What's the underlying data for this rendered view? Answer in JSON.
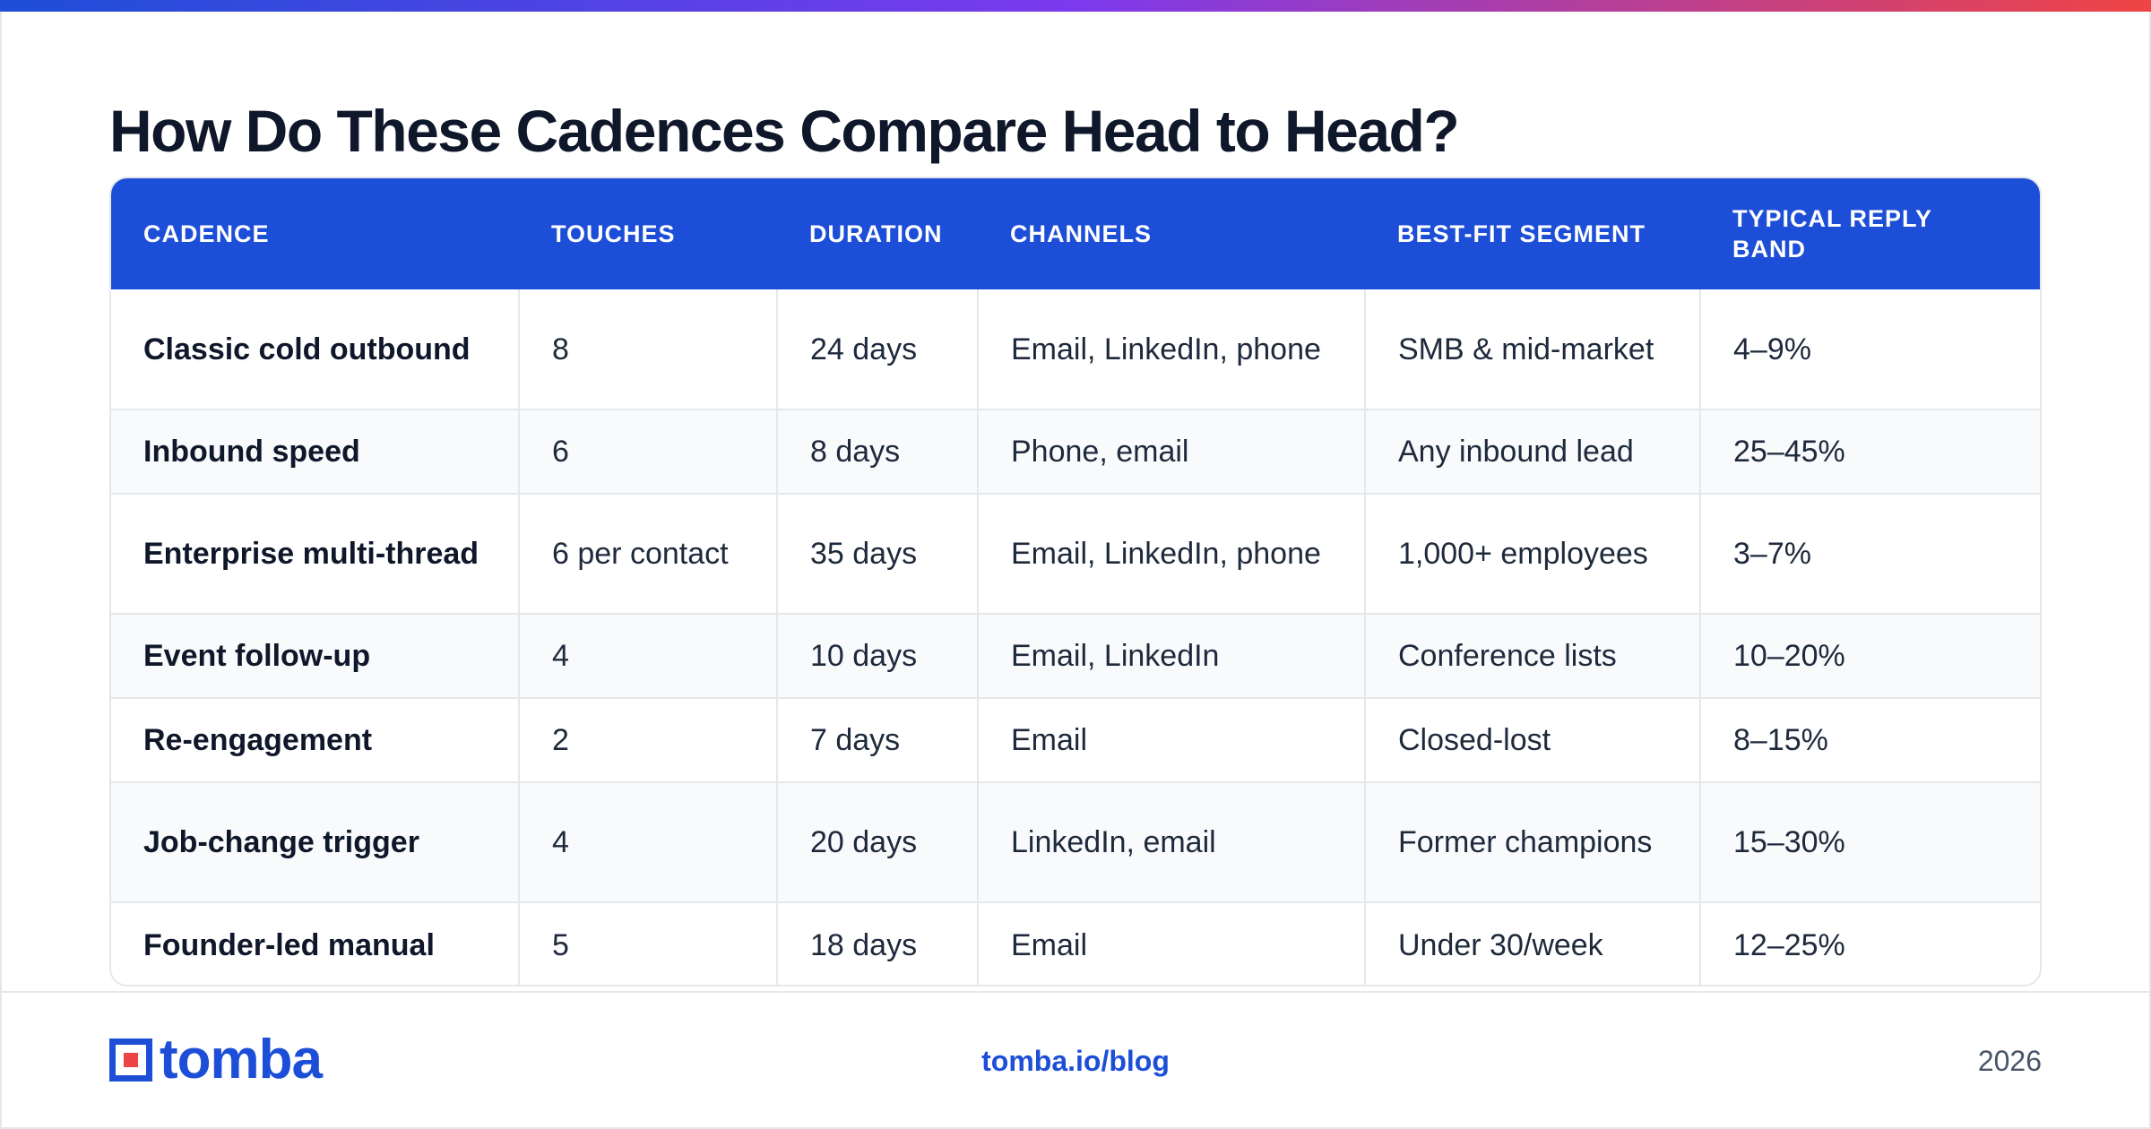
{
  "title": "How Do These Cadences Compare Head to Head?",
  "table": {
    "headers": [
      "CADENCE",
      "TOUCHES",
      "DURATION",
      "CHANNELS",
      "BEST-FIT SEGMENT",
      "TYPICAL REPLY BAND"
    ],
    "rows": [
      [
        "Classic cold outbound",
        "8",
        "24 days",
        "Email, LinkedIn, phone",
        "SMB & mid-market",
        "4–9%"
      ],
      [
        "Inbound speed",
        "6",
        "8 days",
        "Phone, email",
        "Any inbound lead",
        "25–45%"
      ],
      [
        "Enterprise multi-thread",
        "6 per contact",
        "35 days",
        "Email, LinkedIn, phone",
        "1,000+ employees",
        "3–7%"
      ],
      [
        "Event follow-up",
        "4",
        "10 days",
        "Email, LinkedIn",
        "Conference lists",
        "10–20%"
      ],
      [
        "Re-engagement",
        "2",
        "7 days",
        "Email",
        "Closed-lost",
        "8–15%"
      ],
      [
        "Job-change trigger",
        "4",
        "20 days",
        "LinkedIn, email",
        "Former champions",
        "15–30%"
      ],
      [
        "Founder-led manual",
        "5",
        "18 days",
        "Email",
        "Under 30/week",
        "12–25%"
      ]
    ]
  },
  "footer": {
    "logo_text": "tomba",
    "link": "tomba.io/blog",
    "year": "2026"
  },
  "colors": {
    "accent": "#1d4ed8",
    "logo_red": "#ef4444"
  }
}
